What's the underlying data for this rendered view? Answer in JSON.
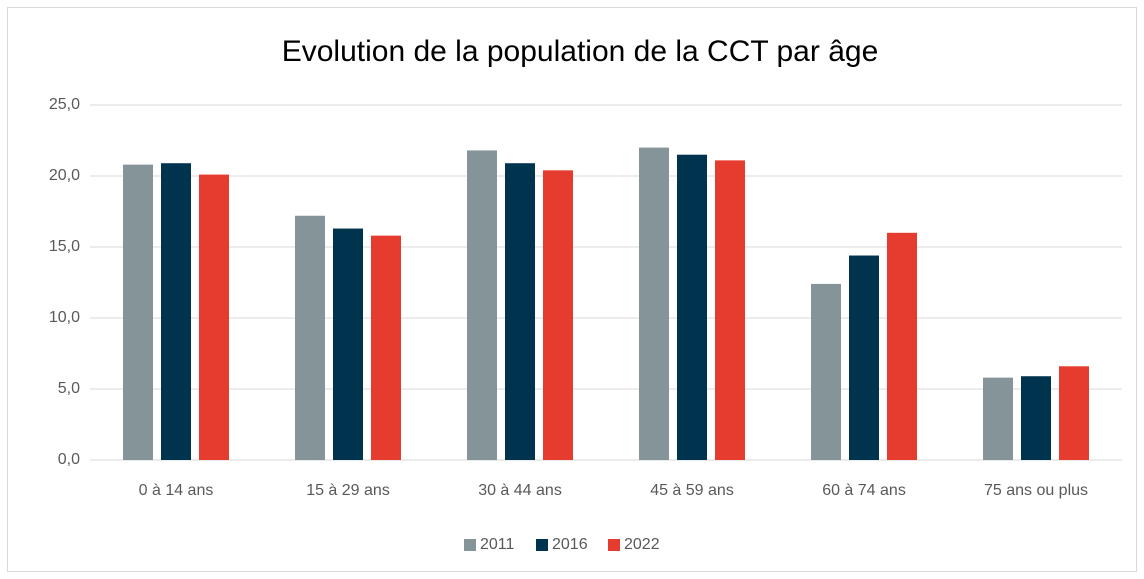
{
  "chart_data": {
    "type": "bar",
    "title": "Evolution de la population de la CCT par âge",
    "categories": [
      "0 à 14 ans",
      "15 à 29 ans",
      "30 à 44 ans",
      "45 à 59 ans",
      "60 à 74 ans",
      "75 ans ou plus"
    ],
    "series": [
      {
        "name": "2011",
        "color": "#849499",
        "values": [
          20.8,
          17.2,
          21.8,
          22.0,
          12.4,
          5.8
        ]
      },
      {
        "name": "2016",
        "color": "#00334e",
        "values": [
          20.9,
          16.3,
          20.9,
          21.5,
          14.4,
          5.9
        ]
      },
      {
        "name": "2022",
        "color": "#e63c2f",
        "values": [
          20.1,
          15.8,
          20.4,
          21.1,
          16.0,
          6.6
        ]
      }
    ],
    "ylim": [
      0,
      25
    ],
    "yticks": [
      {
        "value": 0,
        "label": "0,0"
      },
      {
        "value": 5,
        "label": "5,0"
      },
      {
        "value": 10,
        "label": "10,0"
      },
      {
        "value": 15,
        "label": "15,0"
      },
      {
        "value": 20,
        "label": "20,0"
      },
      {
        "value": 25,
        "label": "25,0"
      }
    ],
    "grid": true,
    "legend": "bottom"
  }
}
